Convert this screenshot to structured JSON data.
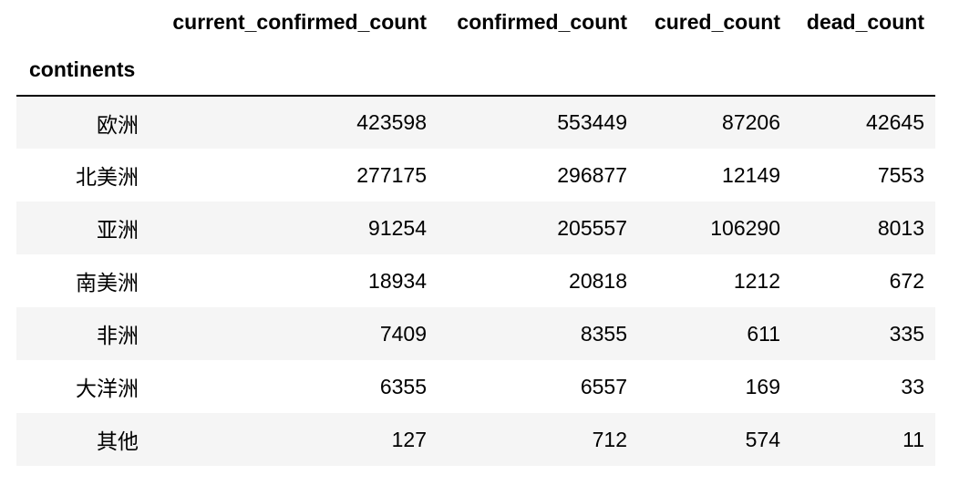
{
  "table": {
    "index_name": "continents",
    "columns": [
      "current_confirmed_count",
      "confirmed_count",
      "cured_count",
      "dead_count"
    ],
    "rows": [
      {
        "index": "欧洲",
        "values": [
          "423598",
          "553449",
          "87206",
          "42645"
        ]
      },
      {
        "index": "北美洲",
        "values": [
          "277175",
          "296877",
          "12149",
          "7553"
        ]
      },
      {
        "index": "亚洲",
        "values": [
          "91254",
          "205557",
          "106290",
          "8013"
        ]
      },
      {
        "index": "南美洲",
        "values": [
          "18934",
          "20818",
          "1212",
          "672"
        ]
      },
      {
        "index": "非洲",
        "values": [
          "7409",
          "8355",
          "611",
          "335"
        ]
      },
      {
        "index": "大洋洲",
        "values": [
          "6355",
          "6557",
          "169",
          "33"
        ]
      },
      {
        "index": "其他",
        "values": [
          "127",
          "712",
          "574",
          "11"
        ]
      }
    ]
  },
  "colors": {
    "stripe": "#f5f5f5",
    "header_rule": "#000000"
  }
}
